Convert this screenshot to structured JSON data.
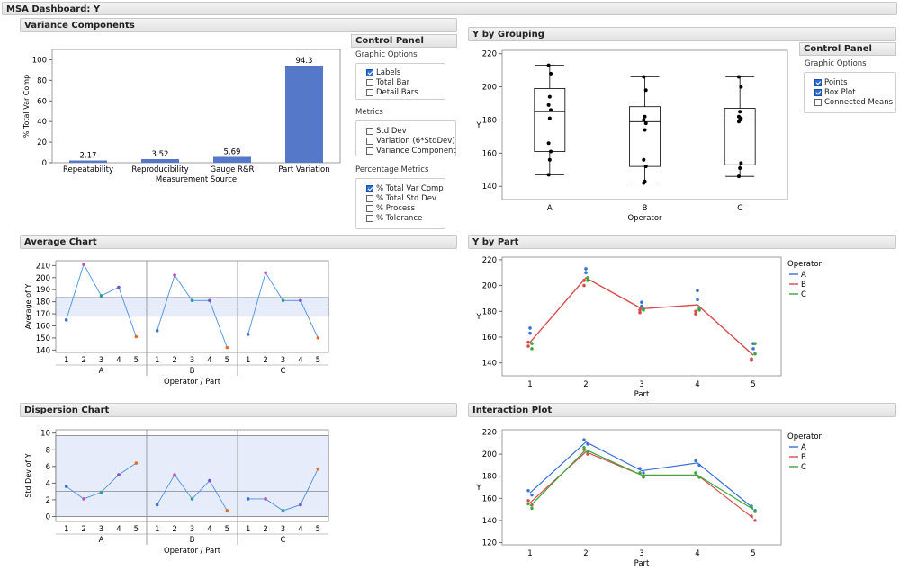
{
  "dashboard_title": "MSA Dashboard: Y",
  "sections": {
    "variance_components": "Variance Components",
    "average_chart": "Average Chart",
    "dispersion_chart": "Dispersion Chart",
    "y_by_grouping": "Y by Grouping",
    "y_by_part": "Y by Part",
    "interaction_plot": "Interaction Plot"
  },
  "control_panel_left": {
    "title": "Control Panel",
    "graphic_options_label": "Graphic Options",
    "graphic_options": [
      {
        "label": "Labels",
        "checked": true
      },
      {
        "label": "Total Bar",
        "checked": false
      },
      {
        "label": "Detail Bars",
        "checked": false
      }
    ],
    "metrics_label": "Metrics",
    "metrics": [
      {
        "label": "Std Dev",
        "checked": false
      },
      {
        "label": "Variation (6*StdDev)",
        "checked": false
      },
      {
        "label": "Variance Component",
        "checked": false
      }
    ],
    "percentage_label": "Percentage Metrics",
    "percentage_metrics": [
      {
        "label": "% Total Var Comp",
        "checked": true
      },
      {
        "label": "% Total Std Dev",
        "checked": false
      },
      {
        "label": "% Process",
        "checked": false
      },
      {
        "label": "% Tolerance",
        "checked": false
      }
    ]
  },
  "control_panel_right": {
    "title": "Control Panel",
    "graphic_options_label": "Graphic Options",
    "graphic_options": [
      {
        "label": "Points",
        "checked": true
      },
      {
        "label": "Box Plot",
        "checked": true
      },
      {
        "label": "Connected Means",
        "checked": false
      }
    ]
  },
  "colors": {
    "bar": "#5578c8",
    "A": "#3a6fd8",
    "B": "#d84a4a",
    "C": "#3aa83a",
    "line": "#4a90e0",
    "band": "#e6ecfa"
  },
  "chart_data": [
    {
      "id": "variance",
      "type": "bar",
      "categories": [
        "Repeatability",
        "Reproducibility",
        "Gauge R&R",
        "Part Variation"
      ],
      "values": [
        2.17,
        3.52,
        5.69,
        94.3
      ],
      "data_labels": [
        "2.17",
        "3.52",
        "5.69",
        "94.3"
      ],
      "xlabel": "Measurement Source",
      "ylabel": "% Total Var Comp",
      "ylim": [
        0,
        110
      ],
      "yticks": [
        "0",
        "20",
        "40",
        "60",
        "80",
        "100"
      ]
    },
    {
      "id": "average",
      "type": "line",
      "ylabel": "Average of Y",
      "xlabel": "Operator  /  Part",
      "groups": [
        "A",
        "B",
        "C"
      ],
      "parts": [
        "1",
        "2",
        "3",
        "4",
        "5"
      ],
      "values": [
        [
          165,
          211,
          185,
          192,
          151
        ],
        [
          156,
          202,
          181,
          181,
          142
        ],
        [
          153,
          204,
          181,
          181,
          150
        ]
      ],
      "center": 175.5,
      "limits": [
        168,
        183.5
      ],
      "ylim": [
        138,
        214
      ],
      "yticks": [
        "140",
        "150",
        "160",
        "170",
        "180",
        "190",
        "200",
        "210"
      ]
    },
    {
      "id": "dispersion",
      "type": "line",
      "ylabel": "Std Dev of Y",
      "xlabel": "Operator  /  Part",
      "groups": [
        "A",
        "B",
        "C"
      ],
      "parts": [
        "1",
        "2",
        "3",
        "4",
        "5"
      ],
      "values": [
        [
          3.6,
          2.1,
          2.9,
          5.0,
          6.4
        ],
        [
          1.4,
          5.0,
          2.1,
          4.3,
          0.7
        ],
        [
          2.1,
          2.1,
          0.7,
          1.4,
          5.7
        ]
      ],
      "center": 3.0,
      "limits": [
        0,
        9.7
      ],
      "ylim": [
        -0.6,
        10.4
      ],
      "yticks": [
        "0",
        "2",
        "4",
        "6",
        "8",
        "10"
      ]
    },
    {
      "id": "grouping",
      "type": "scatter",
      "xlabel": "Operator",
      "ylabel": "Y",
      "categories": [
        "A",
        "B",
        "C"
      ],
      "ylim": [
        132,
        222
      ],
      "yticks": [
        "140",
        "160",
        "180",
        "200",
        "220"
      ],
      "boxes": [
        {
          "min": 147,
          "q1": 161,
          "median": 185,
          "q3": 199,
          "max": 213
        },
        {
          "min": 142,
          "q1": 152,
          "median": 179,
          "q3": 188,
          "max": 206
        },
        {
          "min": 146,
          "q1": 153,
          "median": 180,
          "q3": 187,
          "max": 206
        }
      ],
      "points": [
        [
          147,
          156,
          161,
          166,
          181,
          186,
          189,
          194,
          208,
          213
        ],
        [
          142,
          143,
          152,
          156,
          174,
          178,
          180,
          182,
          198,
          206
        ],
        [
          146,
          151,
          154,
          179,
          180,
          181,
          182,
          185,
          200,
          206
        ]
      ]
    },
    {
      "id": "y_by_part",
      "type": "line",
      "xlabel": "Part",
      "ylabel": "Y",
      "legend_title": "Operator",
      "legend": [
        "A",
        "B",
        "C"
      ],
      "categories": [
        "1",
        "2",
        "3",
        "4",
        "5"
      ],
      "ylim": [
        130,
        222
      ],
      "yticks": [
        "140",
        "160",
        "180",
        "200",
        "220"
      ],
      "mean_line": [
        156,
        206,
        182,
        185,
        146
      ],
      "points": {
        "A": [
          [
            163,
            167
          ],
          [
            210,
            213
          ],
          [
            184,
            187
          ],
          [
            189,
            196
          ],
          [
            151,
            155
          ]
        ],
        "B": [
          [
            153,
            156
          ],
          [
            200,
            204
          ],
          [
            179,
            181
          ],
          [
            178,
            180
          ],
          [
            142,
            143
          ]
        ],
        "C": [
          [
            151,
            155
          ],
          [
            204,
            206
          ],
          [
            181,
            182
          ],
          [
            181,
            182
          ],
          [
            147,
            155
          ]
        ]
      }
    },
    {
      "id": "interaction",
      "type": "line",
      "xlabel": "Part",
      "ylabel": "Y",
      "legend_title": "Operator",
      "legend": [
        "A",
        "B",
        "C"
      ],
      "categories": [
        "1",
        "2",
        "3",
        "4",
        "5"
      ],
      "ylim": [
        118,
        222
      ],
      "yticks": [
        "120",
        "140",
        "160",
        "180",
        "200",
        "220"
      ],
      "series": [
        {
          "name": "A",
          "values": [
            165,
            211,
            185,
            192,
            151
          ]
        },
        {
          "name": "B",
          "values": [
            156,
            202,
            181,
            181,
            142
          ]
        },
        {
          "name": "C",
          "values": [
            153,
            204,
            181,
            181,
            150
          ]
        }
      ]
    }
  ]
}
